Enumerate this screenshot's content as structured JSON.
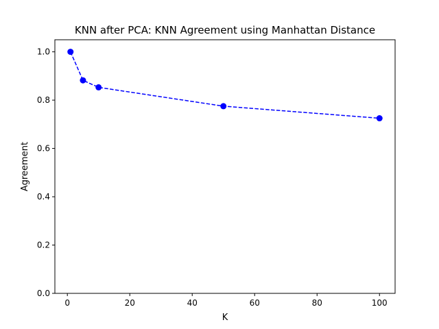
{
  "chart_data": {
    "type": "line",
    "title": "KNN after PCA: KNN Agreement using Manhattan Distance",
    "xlabel": "K",
    "ylabel": "Agreement",
    "xlim": [
      -4.0,
      105.0
    ],
    "ylim": [
      0.0,
      1.05
    ],
    "xticks": [
      0,
      20,
      40,
      60,
      80,
      100
    ],
    "yticks": [
      0.0,
      0.2,
      0.4,
      0.6,
      0.8,
      1.0
    ],
    "xtick_labels": [
      "0",
      "20",
      "40",
      "60",
      "80",
      "100"
    ],
    "ytick_labels": [
      "0.0",
      "0.2",
      "0.4",
      "0.6",
      "0.8",
      "1.0"
    ],
    "grid": false,
    "series": [
      {
        "x": [
          1,
          5,
          10,
          50,
          100
        ],
        "values": [
          1.0,
          0.882,
          0.853,
          0.775,
          0.725
        ],
        "color": "#0000ff",
        "linestyle": "dashed",
        "marker": "circle"
      }
    ]
  }
}
